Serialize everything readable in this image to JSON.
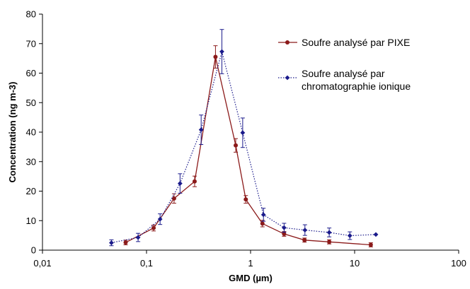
{
  "chart_data": {
    "type": "scatter",
    "title": "",
    "xlabel": "GMD (µm)",
    "ylabel": "Concentration (ng m-3)",
    "x_scale": "log",
    "xlim": [
      0.01,
      100
    ],
    "ylim": [
      0,
      80
    ],
    "x_ticks": [
      "0,01",
      "0,1",
      "1",
      "10",
      "100"
    ],
    "y_ticks": [
      "0",
      "10",
      "20",
      "30",
      "40",
      "50",
      "60",
      "70",
      "80"
    ],
    "grid": false,
    "legend_position": "top-right",
    "series": [
      {
        "name": "Soufre analysé par PIXE",
        "color": "#8b1a1a",
        "line_style": "solid",
        "marker": "circle",
        "x": [
          0.063,
          0.117,
          0.184,
          0.29,
          0.46,
          0.72,
          0.9,
          1.3,
          2.1,
          3.3,
          5.7,
          14.3
        ],
        "y": [
          2.6,
          7.5,
          17.5,
          23.3,
          65.5,
          35.5,
          17.2,
          9.0,
          5.5,
          3.4,
          2.8,
          1.8
        ],
        "error": [
          0.8,
          1.0,
          1.6,
          1.8,
          3.8,
          2.3,
          1.3,
          1.1,
          0.8,
          0.7,
          0.7,
          0.7
        ]
      },
      {
        "name": "Soufre analysé par chromatographie ionique",
        "color": "#1a1a8b",
        "line_style": "dotted",
        "marker": "diamond",
        "x": [
          0.046,
          0.083,
          0.135,
          0.21,
          0.335,
          0.53,
          0.84,
          1.33,
          2.1,
          3.33,
          5.7,
          9.0,
          16.0
        ],
        "y": [
          2.5,
          4.3,
          10.5,
          22.6,
          40.8,
          67.3,
          39.8,
          12.0,
          7.6,
          6.8,
          6.0,
          4.9,
          5.3
        ],
        "error": [
          1.0,
          1.4,
          1.8,
          3.3,
          5.0,
          7.5,
          5.0,
          2.2,
          1.5,
          1.8,
          1.5,
          1.3,
          0
        ]
      }
    ]
  }
}
